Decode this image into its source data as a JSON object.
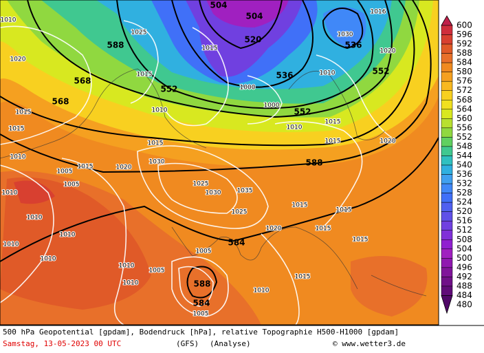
{
  "legend": {
    "labels": [
      "600",
      "596",
      "592",
      "588",
      "584",
      "580",
      "576",
      "572",
      "568",
      "564",
      "560",
      "556",
      "552",
      "548",
      "544",
      "540",
      "536",
      "532",
      "528",
      "524",
      "520",
      "516",
      "512",
      "508",
      "504",
      "500",
      "496",
      "492",
      "488",
      "484",
      "480"
    ],
    "colors": [
      "#c0204a",
      "#cf2e3c",
      "#d84030",
      "#e05a28",
      "#e8702a",
      "#f08a20",
      "#f5a020",
      "#f8b820",
      "#f8d020",
      "#f0e020",
      "#d8e820",
      "#b8e030",
      "#90d840",
      "#60d060",
      "#40c890",
      "#30c0c0",
      "#30b0e0",
      "#40a0f0",
      "#4088f8",
      "#4070f8",
      "#5060f0",
      "#6050e8",
      "#7040e0",
      "#8030d8",
      "#9020d0",
      "#a020c0",
      "#9018b0",
      "#80149a",
      "#701088",
      "#600c78",
      "#500868"
    ]
  },
  "geopotential_labels": [
    "504",
    "504",
    "520",
    "536",
    "552",
    "536",
    "552",
    "588",
    "568",
    "568",
    "552",
    "588",
    "584",
    "588",
    "584"
  ],
  "pressure_labels": [
    "1010",
    "1020",
    "1015",
    "1015",
    "1010",
    "1005",
    "1015",
    "1010",
    "1005",
    "1010",
    "1010",
    "1010",
    "1010",
    "1010",
    "1005",
    "1010",
    "1015",
    "1010",
    "1015",
    "1015",
    "1015",
    "1015",
    "1020",
    "1025",
    "1035",
    "1030",
    "1025",
    "1020",
    "1030",
    "1015",
    "1010",
    "1015",
    "1010",
    "1015",
    "1020",
    "1010",
    "1020",
    "1030",
    "1016",
    "1005",
    "1005",
    "1000",
    "1000",
    "1015",
    "1015",
    "1025"
  ],
  "footer": {
    "line1": "500 hPa Geopotential [gpdam], Bodendruck [hPa], relative Topographie H500-H1000 [gpdam]",
    "date": "Samstag, 13-05-2023  00 UTC",
    "model": "(GFS)",
    "run": "(Analyse)",
    "copyright": "© www.wetter3.de"
  }
}
